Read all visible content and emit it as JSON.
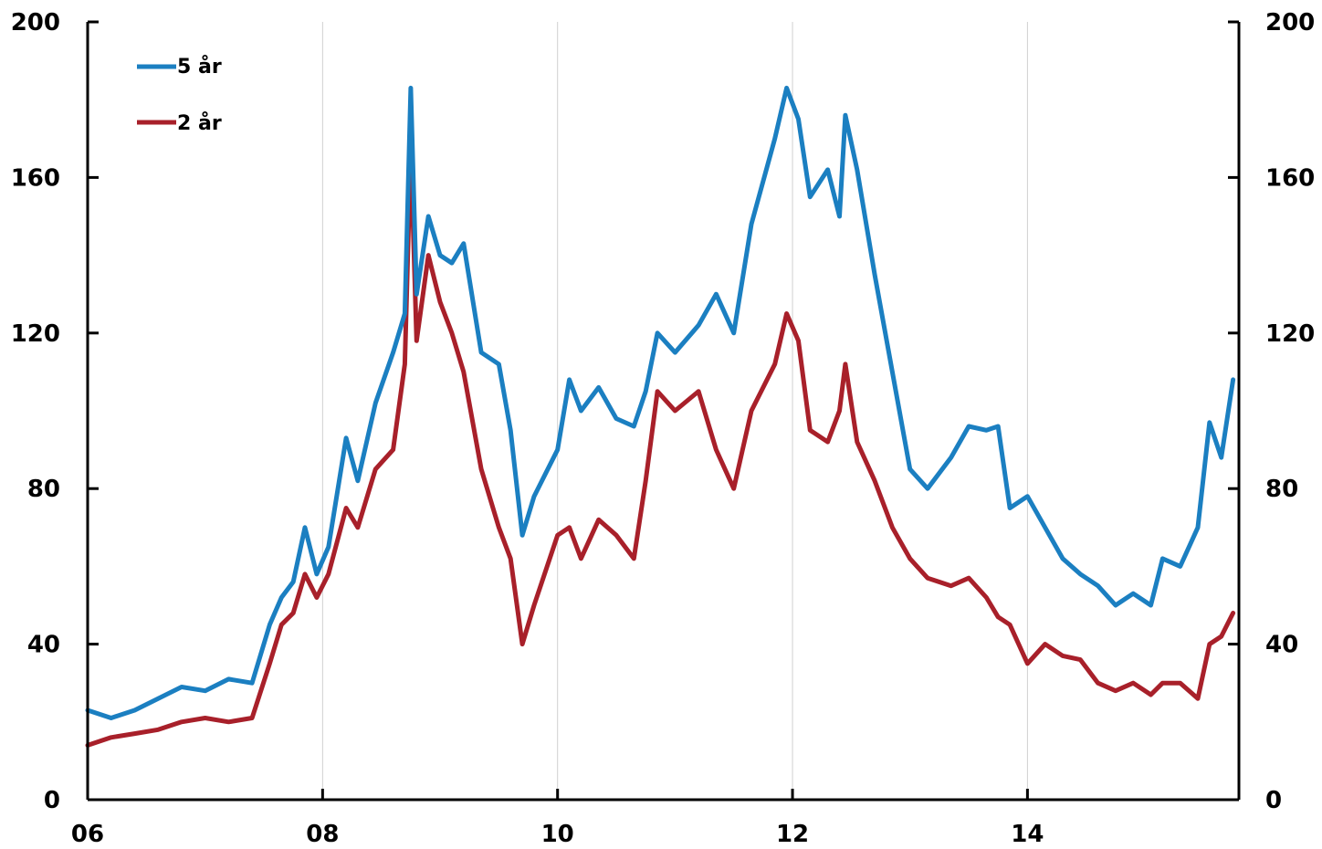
{
  "chart_data": {
    "type": "line",
    "title": "",
    "xlabel": "",
    "ylabel": "",
    "xlim": [
      2006,
      2015.8
    ],
    "ylim": [
      0,
      200
    ],
    "x_ticks": [
      2006,
      2008,
      2010,
      2012,
      2014
    ],
    "x_tick_labels": [
      "06",
      "08",
      "10",
      "12",
      "14"
    ],
    "y_ticks": [
      0,
      40,
      80,
      120,
      160,
      200
    ],
    "y_tick_labels": [
      "0",
      "40",
      "80",
      "120",
      "160",
      "200"
    ],
    "y2_tick_labels": [
      "0",
      "40",
      "80",
      "120",
      "160",
      "200"
    ],
    "grid": "vertical",
    "legend_position": "top-left",
    "series": [
      {
        "name": "5 år",
        "color": "#1b7fc1",
        "x": [
          2006.0,
          2006.2,
          2006.4,
          2006.6,
          2006.8,
          2007.0,
          2007.2,
          2007.4,
          2007.55,
          2007.65,
          2007.75,
          2007.85,
          2007.95,
          2008.05,
          2008.2,
          2008.3,
          2008.45,
          2008.6,
          2008.7,
          2008.75,
          2008.8,
          2008.9,
          2009.0,
          2009.1,
          2009.2,
          2009.35,
          2009.5,
          2009.6,
          2009.7,
          2009.8,
          2010.0,
          2010.1,
          2010.2,
          2010.35,
          2010.5,
          2010.65,
          2010.75,
          2010.85,
          2011.0,
          2011.2,
          2011.35,
          2011.5,
          2011.65,
          2011.85,
          2011.95,
          2012.05,
          2012.15,
          2012.3,
          2012.4,
          2012.45,
          2012.55,
          2012.7,
          2012.85,
          2013.0,
          2013.15,
          2013.35,
          2013.5,
          2013.65,
          2013.75,
          2013.85,
          2014.0,
          2014.15,
          2014.3,
          2014.45,
          2014.6,
          2014.75,
          2014.9,
          2015.05,
          2015.15,
          2015.3,
          2015.45,
          2015.55,
          2015.65,
          2015.75
        ],
        "values": [
          23,
          21,
          23,
          26,
          29,
          28,
          31,
          30,
          45,
          52,
          56,
          70,
          58,
          65,
          93,
          82,
          102,
          115,
          125,
          183,
          130,
          150,
          140,
          138,
          143,
          115,
          112,
          95,
          68,
          78,
          90,
          108,
          100,
          106,
          98,
          96,
          105,
          120,
          115,
          122,
          130,
          120,
          148,
          170,
          183,
          175,
          155,
          162,
          150,
          176,
          162,
          135,
          110,
          85,
          80,
          88,
          96,
          95,
          96,
          75,
          78,
          70,
          62,
          58,
          55,
          50,
          53,
          50,
          62,
          60,
          70,
          97,
          88,
          108
        ]
      },
      {
        "name": "2 år",
        "color": "#a8202a",
        "x": [
          2006.0,
          2006.2,
          2006.4,
          2006.6,
          2006.8,
          2007.0,
          2007.2,
          2007.4,
          2007.55,
          2007.65,
          2007.75,
          2007.85,
          2007.95,
          2008.05,
          2008.2,
          2008.3,
          2008.45,
          2008.6,
          2008.7,
          2008.75,
          2008.8,
          2008.9,
          2009.0,
          2009.1,
          2009.2,
          2009.35,
          2009.5,
          2009.6,
          2009.7,
          2009.8,
          2010.0,
          2010.1,
          2010.2,
          2010.35,
          2010.5,
          2010.65,
          2010.75,
          2010.85,
          2011.0,
          2011.2,
          2011.35,
          2011.5,
          2011.65,
          2011.85,
          2011.95,
          2012.05,
          2012.15,
          2012.3,
          2012.4,
          2012.45,
          2012.55,
          2012.7,
          2012.85,
          2013.0,
          2013.15,
          2013.35,
          2013.5,
          2013.65,
          2013.75,
          2013.85,
          2014.0,
          2014.15,
          2014.3,
          2014.45,
          2014.6,
          2014.75,
          2014.9,
          2015.05,
          2015.15,
          2015.3,
          2015.45,
          2015.55,
          2015.65,
          2015.75
        ],
        "values": [
          14,
          16,
          17,
          18,
          20,
          21,
          20,
          21,
          35,
          45,
          48,
          58,
          52,
          58,
          75,
          70,
          85,
          90,
          112,
          168,
          118,
          140,
          128,
          120,
          110,
          85,
          70,
          62,
          40,
          50,
          68,
          70,
          62,
          72,
          68,
          62,
          82,
          105,
          100,
          105,
          90,
          80,
          100,
          112,
          125,
          118,
          95,
          92,
          100,
          112,
          92,
          82,
          70,
          62,
          57,
          55,
          57,
          52,
          47,
          45,
          35,
          40,
          37,
          36,
          30,
          28,
          30,
          27,
          30,
          30,
          26,
          40,
          42,
          48
        ]
      }
    ]
  },
  "legend": [
    {
      "label": "5 år",
      "color": "#1b7fc1"
    },
    {
      "label": "2 år",
      "color": "#a8202a"
    }
  ]
}
